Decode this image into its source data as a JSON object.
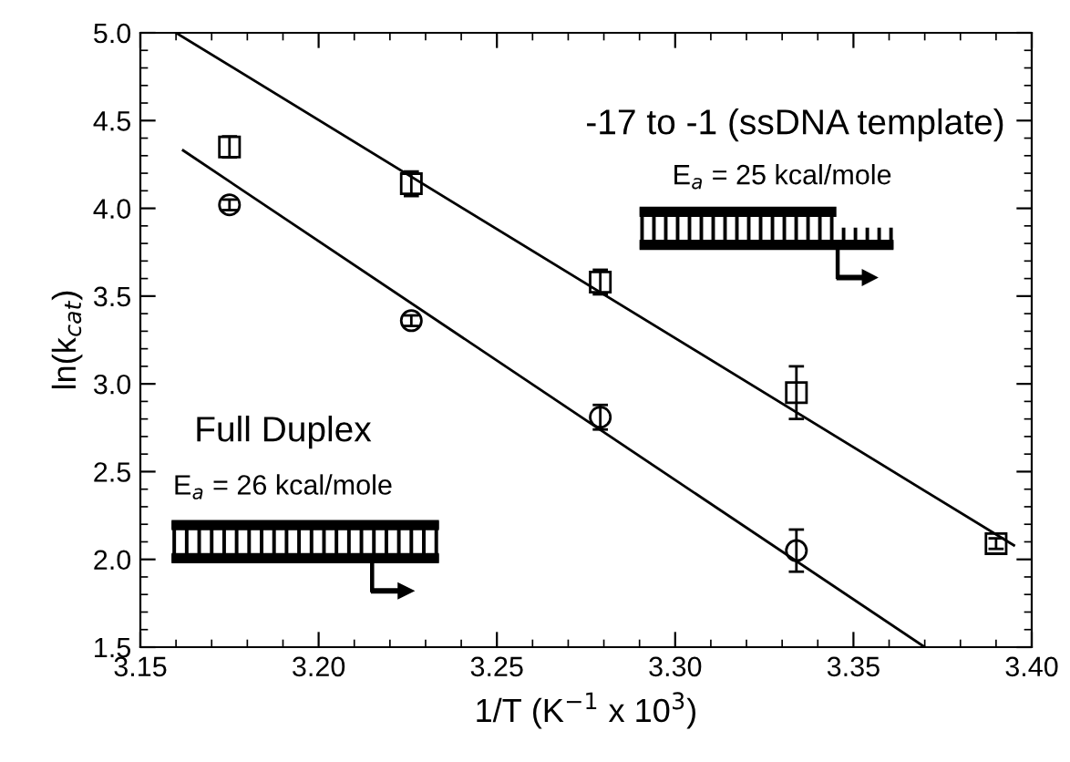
{
  "chart_data": {
    "type": "scatter",
    "xlabel": "1/T (K$^{−1}$ x 10$^{3}$)",
    "ylabel": "ln(k$_{cat}$)",
    "xlim": [
      3.15,
      3.4
    ],
    "xticks": [
      {
        "value": 3.15,
        "label": "3.15"
      },
      {
        "value": 3.2,
        "label": "3.20"
      },
      {
        "value": 3.25,
        "label": "3.25"
      },
      {
        "value": 3.3,
        "label": "3.30"
      },
      {
        "value": 3.35,
        "label": "3.35"
      },
      {
        "value": 3.4,
        "label": "3.40"
      }
    ],
    "ylim": [
      1.5,
      5.0
    ],
    "yticks": [
      {
        "value": 1.5,
        "label": "1.5"
      },
      {
        "value": 2.0,
        "label": "2.0"
      },
      {
        "value": 2.5,
        "label": "2.5"
      },
      {
        "value": 3.0,
        "label": "3.0"
      },
      {
        "value": 3.5,
        "label": "3.5"
      },
      {
        "value": 4.0,
        "label": "4.0"
      },
      {
        "value": 4.5,
        "label": "4.5"
      },
      {
        "value": 5.0,
        "label": "5.0"
      }
    ],
    "grid": false,
    "legend": false,
    "series": [
      {
        "marker": "square",
        "color": "#000000",
        "x": [
          3.175,
          3.226,
          3.279,
          3.334,
          3.39
        ],
        "values": [
          4.35,
          4.14,
          3.58,
          2.95,
          2.09
        ],
        "errors": [
          0.06,
          0.07,
          0.07,
          0.15,
          0.03
        ]
      },
      {
        "marker": "circle",
        "color": "#000000",
        "x": [
          3.175,
          3.226,
          3.279,
          3.334
        ],
        "values": [
          4.02,
          3.36,
          2.81,
          2.05
        ],
        "errors": [
          0.03,
          0.03,
          0.07,
          0.12
        ]
      },
      {
        "type": "line",
        "marker": "none",
        "line_style": "solid",
        "color": "#000000",
        "x": [
          3.16,
          3.395
        ],
        "values": [
          5.0,
          2.08
        ]
      },
      {
        "type": "line",
        "marker": "none",
        "line_style": "solid",
        "color": "#000000",
        "x": [
          3.162,
          3.37
        ],
        "values": [
          4.33,
          1.5
        ]
      }
    ],
    "annotations": [
      "-17 to -1 (ssDNA template)",
      "E$_{a}$ = 25 kcal/mole",
      "Full Duplex",
      "E$_{a}$ = 26 kcal/mole"
    ]
  }
}
